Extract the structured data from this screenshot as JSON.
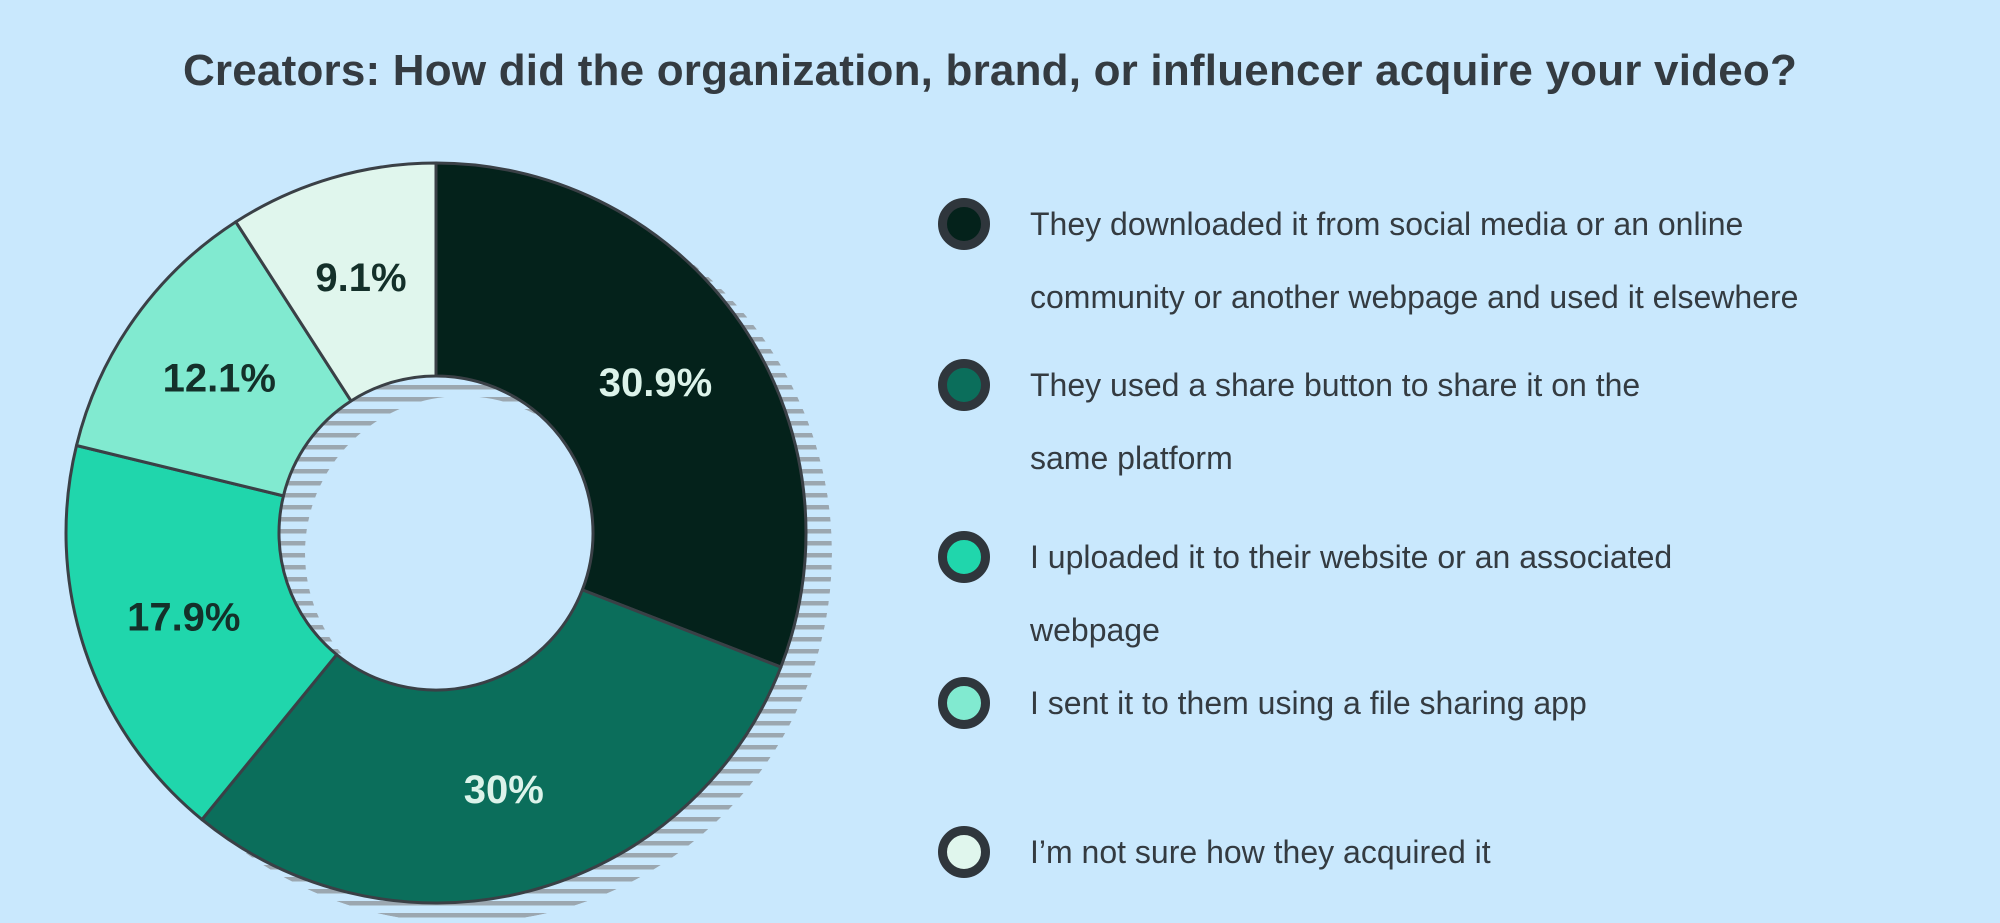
{
  "title": "Creators: How did the organization, brand, or influencer acquire your video?",
  "chart_data": {
    "type": "pie",
    "subtype": "donut",
    "title": "Creators: How did the organization, brand, or influencer acquire your video?",
    "unit": "%",
    "start_angle_deg": -90,
    "direction": "clockwise",
    "legend_position": "right",
    "slices": [
      {
        "label": "They downloaded it from social media or an online community or another webpage and used it elsewhere",
        "value": 30.9,
        "display": "30.9%",
        "color": "#04221b",
        "label_color": "#dcf3ea"
      },
      {
        "label": "They used a share button to share it on the same platform",
        "value": 30,
        "display": "30%",
        "color": "#0b6e5b",
        "label_color": "#dcf3ea"
      },
      {
        "label": "I uploaded it to their website or an associated webpage",
        "value": 17.9,
        "display": "17.9%",
        "color": "#20d6ac",
        "label_color": "#14302a"
      },
      {
        "label": "I sent it to them using a file sharing app",
        "value": 12.1,
        "display": "12.1%",
        "color": "#81ead0",
        "label_color": "#14302a"
      },
      {
        "label": "I’m not sure how they acquired it",
        "value": 9.1,
        "display": "9.1%",
        "color": "#e0f6ed",
        "label_color": "#14302a"
      }
    ]
  },
  "legend": {
    "items": [
      {
        "lines": [
          "They downloaded it from social media or an online",
          "community or another webpage and used it elsewhere"
        ]
      },
      {
        "lines": [
          "They used a share button to share it on the",
          "same platform"
        ]
      },
      {
        "lines": [
          "I uploaded it to their website or an associated",
          "webpage"
        ]
      },
      {
        "lines": [
          "I sent it to them using a file sharing app"
        ]
      },
      {
        "lines": [
          "I’m not sure how they acquired it"
        ]
      }
    ]
  },
  "colors": {
    "background": "#c9e8fd",
    "slice_outline": "#3a4046",
    "legend_ring": "#2f363c",
    "text": "#343b41",
    "shadow_stripe": "#9ba7b0"
  }
}
